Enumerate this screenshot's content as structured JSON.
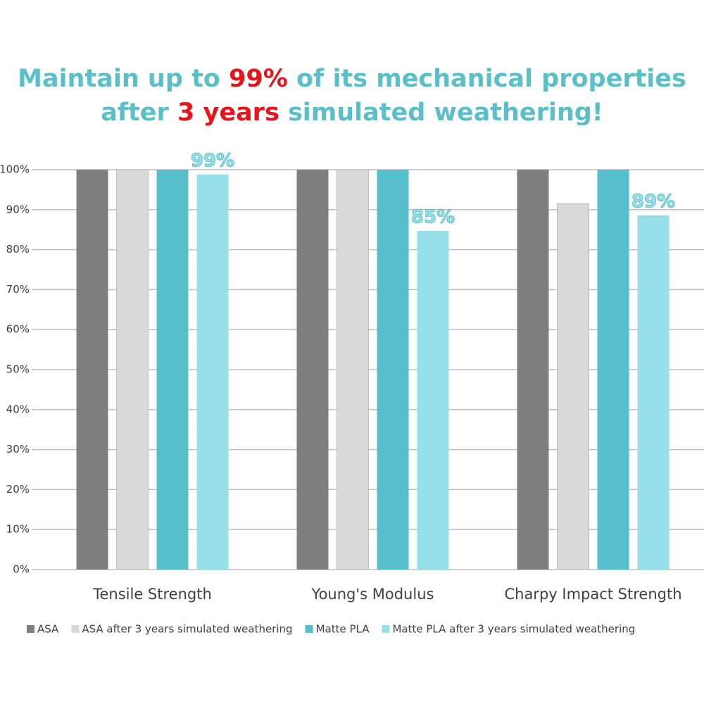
{
  "chart_data": {
    "type": "bar",
    "title": [
      [
        {
          "text": "Maintain up to ",
          "color": "#5bbfc7"
        },
        {
          "text": "99%",
          "color": "#e8141b"
        },
        {
          "text": " of its mechanical properties",
          "color": "#5bbfc7"
        }
      ],
      [
        {
          "text": "after ",
          "color": "#5bbfc7"
        },
        {
          "text": "3 years",
          "color": "#e8141b"
        },
        {
          "text": " simulated weathering!",
          "color": "#5bbfc7"
        }
      ]
    ],
    "categories": [
      "Tensile Strength",
      "Young's Modulus",
      "Charpy Impact Strength"
    ],
    "series": [
      {
        "name": "ASA",
        "color": "#7f7f7f",
        "values": [
          100,
          100,
          100
        ]
      },
      {
        "name": "ASA after 3 years simulated weathering",
        "color": "#d9d9d9",
        "values": [
          100,
          100,
          91.5
        ]
      },
      {
        "name": "Matte PLA",
        "color": "#56bfcb",
        "values": [
          100,
          100,
          100
        ]
      },
      {
        "name": "Matte PLA after 3 years simulated weathering",
        "color": "#97e0e9",
        "values": [
          98.8,
          84.7,
          88.6
        ],
        "value_labels": [
          "99%",
          "85%",
          "89%"
        ]
      }
    ],
    "ylim": [
      0,
      100
    ],
    "yticks": [
      {
        "value": 0,
        "label": "0%"
      },
      {
        "value": 10,
        "label": "10%"
      },
      {
        "value": 20,
        "label": "20%"
      },
      {
        "value": 30,
        "label": "30%"
      },
      {
        "value": 40,
        "label": "40%"
      },
      {
        "value": 50,
        "label": "50%"
      },
      {
        "value": 60,
        "label": "60%"
      },
      {
        "value": 70,
        "label": "70%"
      },
      {
        "value": 80,
        "label": "80%"
      },
      {
        "value": 90,
        "label": "90%"
      },
      {
        "value": 100,
        "label": "100%"
      }
    ],
    "grid": true,
    "legend": "bottom"
  }
}
